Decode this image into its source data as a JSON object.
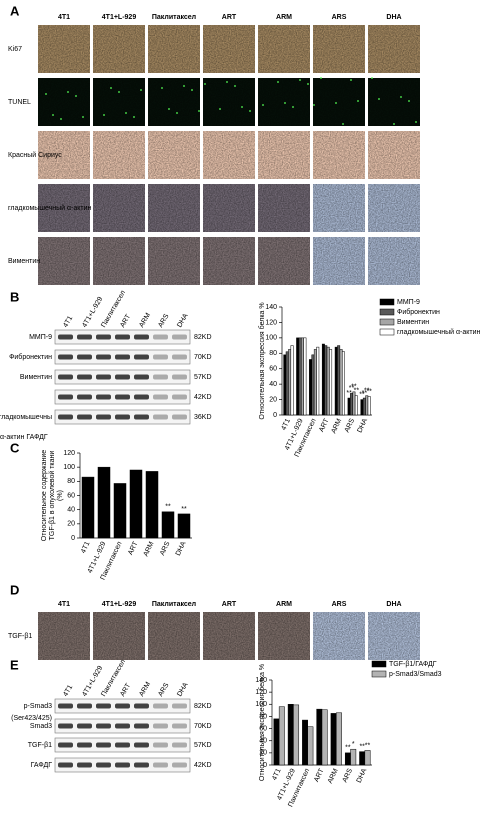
{
  "panel_a": {
    "letter": "A",
    "columns": [
      "4T1",
      "4T1+L-929",
      "Паклитаксел",
      "ART",
      "ARM",
      "ARS",
      "DHA"
    ],
    "rows": [
      "Ki67",
      "TUNEL",
      "Красный Сириус",
      "гладкомышечный α-актин",
      "Виментин"
    ]
  },
  "panel_b": {
    "letter": "B",
    "blot": {
      "lanes": [
        "4T1",
        "4T1+L-929",
        "Паклитаксел",
        "ART",
        "ARM",
        "ARS",
        "DHA"
      ],
      "rows": [
        {
          "label": "ММП-9",
          "kd": "82KD"
        },
        {
          "label": "Фибронектин",
          "kd": "70KD"
        },
        {
          "label": "Виментин",
          "kd": "57KD"
        },
        {
          "kd": "42KD"
        },
        {
          "label": "гладкомышечны",
          "kd": "36KD"
        }
      ],
      "note": "α-актин ГАФДГ"
    }
  },
  "panel_c": {
    "letter": "C"
  },
  "panel_d": {
    "letter": "D",
    "columns": [
      "4T1",
      "4T1+L-929",
      "Паклитаксел",
      "ART",
      "ARM",
      "ARS",
      "DHA"
    ],
    "rows": [
      "TGF-β1"
    ]
  },
  "panel_e": {
    "letter": "E",
    "blot": {
      "lanes": [
        "4T1",
        "4T1+L-929",
        "Паклитаксел",
        "ART",
        "ARM",
        "ARS",
        "DHA"
      ],
      "rows": [
        {
          "label": "p-Smad3",
          "sublabel": "(Ser423/425)",
          "kd": "82KD"
        },
        {
          "label": "Smad3",
          "kd": "70KD"
        },
        {
          "label": "TGF-β1",
          "kd": "57KD"
        },
        {
          "label": "ГАФДГ",
          "kd": "42KD"
        }
      ]
    }
  },
  "chart_data": [
    {
      "type": "bar",
      "ylabel": [
        "Относительная экспрессия белка %"
      ],
      "categories": [
        "4T1",
        "4T1+L-929",
        "Паклитаксел",
        "ART",
        "ARM",
        "ARS",
        "DHA"
      ],
      "series": [
        {
          "name": "ММП-9",
          "color": "#000000",
          "values": [
            78,
            100,
            72,
            92,
            88,
            22,
            20
          ],
          "sig": [
            null,
            null,
            null,
            null,
            null,
            "**",
            "**"
          ]
        },
        {
          "name": "Фибронектин",
          "color": "#595959",
          "values": [
            82,
            100,
            78,
            90,
            90,
            28,
            22
          ],
          "sig": [
            null,
            null,
            null,
            null,
            null,
            "**",
            "**"
          ]
        },
        {
          "name": "Виментин",
          "color": "#a6a6a6",
          "values": [
            85,
            100,
            85,
            88,
            85,
            30,
            25
          ],
          "sig": [
            null,
            null,
            null,
            null,
            null,
            "**",
            "**"
          ]
        },
        {
          "name": "гладкомышечный α-актин",
          "color": "#ffffff",
          "values": [
            90,
            100,
            88,
            85,
            82,
            25,
            24
          ],
          "sig": [
            null,
            null,
            null,
            null,
            null,
            "**",
            "**"
          ]
        }
      ],
      "ylim": [
        0,
        140
      ],
      "yticks": [
        0,
        20,
        40,
        60,
        80,
        100,
        120,
        140
      ]
    },
    {
      "type": "bar",
      "ylabel": [
        "Относительное содержание",
        "TGF-β1 в опухолевой ткани",
        "(%)"
      ],
      "categories": [
        "4T1",
        "4T1+L-929",
        "Паклитаксел",
        "ART",
        "ARM",
        "ARS",
        "DHA"
      ],
      "values": [
        86,
        100,
        77,
        96,
        94,
        37,
        34
      ],
      "color": "#000000",
      "sig": [
        null,
        null,
        null,
        null,
        null,
        "**",
        "**"
      ],
      "ylim": [
        0,
        120
      ],
      "yticks": [
        0,
        20,
        40,
        60,
        80,
        100,
        120
      ]
    },
    {
      "type": "bar",
      "ylabel": [
        "Относительная экспрессия белка %"
      ],
      "categories": [
        "4T1",
        "4T1+L-929",
        "Паклитаксел",
        "ART",
        "ARM",
        "ARS",
        "DHA"
      ],
      "series": [
        {
          "name": "TGF-β1/ГАФДГ",
          "color": "#000000",
          "values": [
            76,
            100,
            74,
            92,
            85,
            20,
            22
          ],
          "sig": [
            null,
            null,
            null,
            null,
            null,
            "**",
            "**"
          ]
        },
        {
          "name": "p-Smad3/Smad3",
          "color": "#b3b3b3",
          "values": [
            96,
            99,
            63,
            91,
            86,
            26,
            24
          ],
          "sig": [
            null,
            null,
            null,
            null,
            null,
            "*",
            "**"
          ]
        }
      ],
      "ylim": [
        0,
        140
      ],
      "yticks": [
        0,
        20,
        40,
        60,
        80,
        100,
        120,
        140
      ]
    }
  ]
}
